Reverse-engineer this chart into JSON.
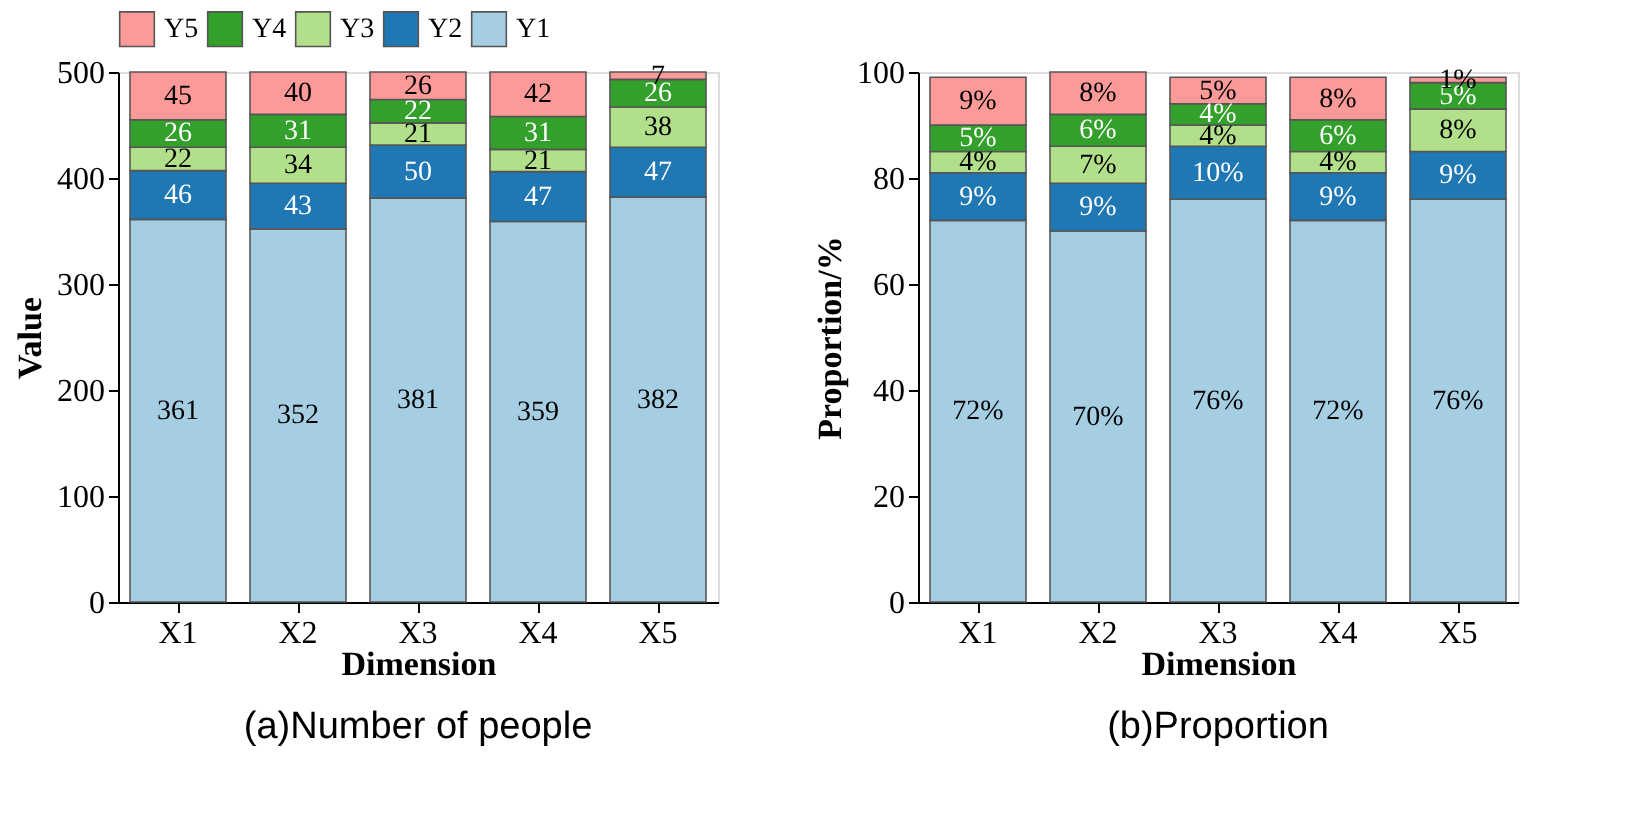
{
  "chart_data": [
    {
      "type": "bar",
      "stacked": true,
      "xlabel": "Dimension",
      "ylabel": "Value",
      "categories": [
        "X1",
        "X2",
        "X3",
        "X4",
        "X5"
      ],
      "ylim": [
        0,
        500
      ],
      "yticks": [
        0,
        100,
        200,
        300,
        400,
        500
      ],
      "grid": false,
      "legend": "top",
      "data_labels": true,
      "annotations": [
        "(a)Number of people"
      ],
      "series": [
        {
          "name": "Y1",
          "color": "#a6cee3",
          "values": [
            361,
            352,
            381,
            359,
            382
          ]
        },
        {
          "name": "Y2",
          "color": "#1f78b4",
          "values": [
            46,
            43,
            50,
            47,
            47
          ]
        },
        {
          "name": "Y3",
          "color": "#b2df8a",
          "values": [
            22,
            34,
            21,
            21,
            38
          ]
        },
        {
          "name": "Y4",
          "color": "#33a02c",
          "values": [
            26,
            31,
            22,
            31,
            26
          ]
        },
        {
          "name": "Y5",
          "color": "#fb9a99",
          "values": [
            45,
            40,
            26,
            42,
            7
          ]
        }
      ]
    },
    {
      "type": "bar",
      "stacked": true,
      "xlabel": "Dimension",
      "ylabel": "Proportion/%",
      "categories": [
        "X1",
        "X2",
        "X3",
        "X4",
        "X5"
      ],
      "ylim": [
        0,
        100
      ],
      "yticks": [
        0,
        20,
        40,
        60,
        80,
        100
      ],
      "grid": false,
      "legend": "top",
      "annotations": [
        "(b)Proportion"
      ],
      "series": [
        {
          "name": "Y1",
          "color": "#a6cee3",
          "values": [
            72,
            70,
            76,
            72,
            76
          ],
          "value_labels": [
            "72%",
            "70%",
            "76%",
            "72%",
            "76%"
          ]
        },
        {
          "name": "Y2",
          "color": "#1f78b4",
          "values": [
            9,
            9,
            10,
            9,
            9
          ],
          "value_labels": [
            "9%",
            "9%",
            "10%",
            "9%",
            "9%"
          ]
        },
        {
          "name": "Y3",
          "color": "#b2df8a",
          "values": [
            4,
            7,
            4,
            4,
            8
          ],
          "value_labels": [
            "4%",
            "7%",
            "4%",
            "4%",
            "8%"
          ]
        },
        {
          "name": "Y4",
          "color": "#33a02c",
          "values": [
            5,
            6,
            4,
            6,
            5
          ],
          "value_labels": [
            "5%",
            "6%",
            "4%",
            "6%",
            "5%"
          ]
        },
        {
          "name": "Y5",
          "color": "#fb9a99",
          "values": [
            9,
            8,
            5,
            8,
            1
          ],
          "value_labels": [
            "9%",
            "8%",
            "5%",
            "8%",
            "1%"
          ]
        }
      ]
    }
  ]
}
